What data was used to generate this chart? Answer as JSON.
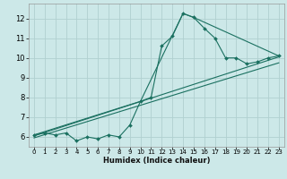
{
  "xlabel": "Humidex (Indice chaleur)",
  "ylabel": "",
  "bg_color": "#cce8e8",
  "grid_color": "#b0d0d0",
  "line_color": "#1a7060",
  "xlim": [
    -0.5,
    23.5
  ],
  "ylim": [
    5.5,
    12.75
  ],
  "yticks": [
    6,
    7,
    8,
    9,
    10,
    11,
    12
  ],
  "xticks": [
    0,
    1,
    2,
    3,
    4,
    5,
    6,
    7,
    8,
    9,
    10,
    11,
    12,
    13,
    14,
    15,
    16,
    17,
    18,
    19,
    20,
    21,
    22,
    23
  ],
  "series_main": {
    "x": [
      0,
      1,
      2,
      3,
      4,
      5,
      6,
      7,
      8,
      9,
      10,
      11,
      12,
      13,
      14,
      15,
      16,
      17,
      18,
      19,
      20,
      21,
      22,
      23
    ],
    "y": [
      6.1,
      6.2,
      6.1,
      6.2,
      5.8,
      6.0,
      5.9,
      6.1,
      6.0,
      6.6,
      7.8,
      8.0,
      10.6,
      11.1,
      12.25,
      12.05,
      11.5,
      11.0,
      10.0,
      10.0,
      9.7,
      9.8,
      10.0,
      10.1
    ]
  },
  "series_extra": [
    {
      "x": [
        0,
        10,
        14,
        15,
        23
      ],
      "y": [
        6.1,
        7.8,
        12.25,
        12.05,
        10.1
      ]
    },
    {
      "x": [
        0,
        23
      ],
      "y": [
        6.05,
        10.05
      ]
    },
    {
      "x": [
        0,
        23
      ],
      "y": [
        5.95,
        9.75
      ]
    }
  ]
}
